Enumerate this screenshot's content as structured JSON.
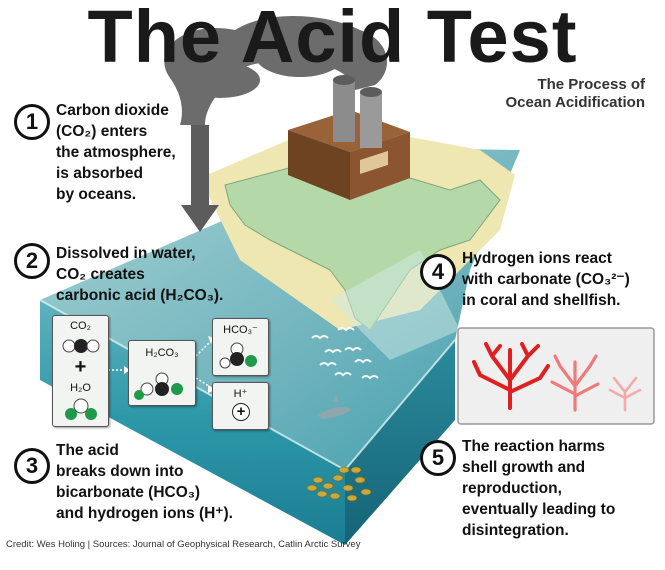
{
  "title": "The Acid Test",
  "subtitle_line1": "The Process of",
  "subtitle_line2": "Ocean Acidification",
  "steps": [
    {
      "number": "1",
      "text": "Carbon dioxide\n(CO₂) enters\nthe atmosphere,\nis absorbed\nby oceans."
    },
    {
      "number": "2",
      "text": "Dissolved in water,\nCO₂ creates\ncarbonic acid (H₂CO₃)."
    },
    {
      "number": "3",
      "text": "The acid\nbreaks down into\nbicarbonate (HCO₃)\nand hydrogen ions (H⁺)."
    },
    {
      "number": "4",
      "text": "Hydrogen ions react\nwith carbonate (CO₃²⁻)\nin coral and shellfish."
    },
    {
      "number": "5",
      "text": "The reaction harms\nshell growth and\nreproduction,\neventually leading to\ndisintegration."
    }
  ],
  "molecules": {
    "co2": "CO₂",
    "plus": "+",
    "h2o": "H₂O",
    "h2co3": "H₂CO₃",
    "hco3": "HCO₃⁻",
    "h_ion": "H⁺",
    "h_plus_sign": "+"
  },
  "credit": "Credit: Wes Holing | Sources: Journal of Geophysical Research, Catlin Arctic Survey",
  "colors": {
    "ocean_top": "#7fb7bf",
    "ocean_deep": "#2a8fa3",
    "land": "#b9dbb0",
    "sand": "#f0e8b4",
    "smoke": "#6e6e6e",
    "coral_healthy": "#e02020",
    "coral_fading": "#f07a7a",
    "coral_faint": "#f4aaaa",
    "factory": "#7a4a2a"
  }
}
